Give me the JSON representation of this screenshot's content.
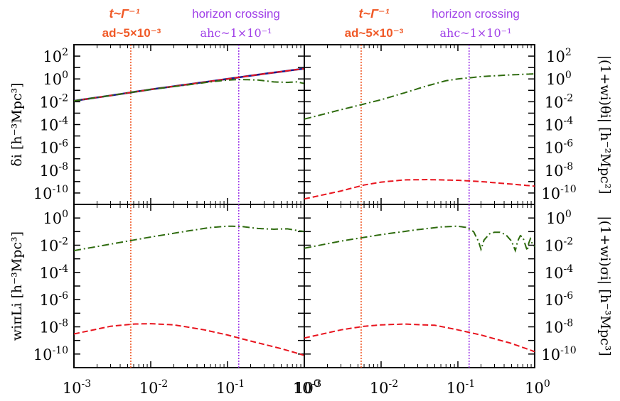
{
  "colors": {
    "decay": "#f05a28",
    "horizon": "#a040e8",
    "dark_blue": "#1a1a8c",
    "green": "#2e6b0e",
    "red": "#e8141e",
    "frame": "#000000"
  },
  "annotations": {
    "decay_title": "t~Γ⁻¹",
    "decay_sub": "ad~5×10⁻³",
    "horizon_title": "horizon crossing",
    "horizon_sub": "ahc~1×10⁻¹"
  },
  "chart_data": [
    {
      "type": "line",
      "panel": "top-left",
      "ylabel": "δi [h⁻³Mpc³]",
      "xscale": "log",
      "yscale": "log",
      "xlim": [
        0.001,
        1
      ],
      "ylim": [
        1e-11,
        1000
      ],
      "yticks": [
        "10^2",
        "10^0",
        "10^-2",
        "10^-4",
        "10^-6",
        "10^-8",
        "10^-10"
      ],
      "vlines": [
        0.0055,
        0.14
      ],
      "series": [
        {
          "name": "solid",
          "style": "solid",
          "color": "dark_blue",
          "x": [
            0.001,
            0.003,
            0.01,
            0.03,
            0.1,
            0.3,
            1
          ],
          "y": [
            0.012,
            0.035,
            0.12,
            0.33,
            1.0,
            2.8,
            8
          ]
        },
        {
          "name": "dashed",
          "style": "dashed",
          "color": "red",
          "x": [
            0.001,
            0.003,
            0.01,
            0.03,
            0.1,
            0.3,
            1
          ],
          "y": [
            0.012,
            0.035,
            0.12,
            0.33,
            1.0,
            2.8,
            8
          ]
        },
        {
          "name": "dash-dot",
          "style": "dashdot",
          "color": "green",
          "x": [
            0.001,
            0.003,
            0.01,
            0.03,
            0.06,
            0.1,
            0.15,
            0.25,
            0.4,
            0.6,
            0.8,
            1
          ],
          "y": [
            0.012,
            0.035,
            0.12,
            0.3,
            0.55,
            0.8,
            0.9,
            0.8,
            0.55,
            0.5,
            0.55,
            0.4
          ]
        }
      ]
    },
    {
      "type": "line",
      "panel": "top-right",
      "ylabel": "|(1+wi)θi| [h⁻²Mpc²]",
      "xscale": "log",
      "yscale": "log",
      "xlim": [
        0.001,
        1
      ],
      "ylim": [
        1e-11,
        1000
      ],
      "yticks": [
        "10^2",
        "10^0",
        "10^-2",
        "10^-4",
        "10^-6",
        "10^-8",
        "10^-10"
      ],
      "vlines": [
        0.0055,
        0.14
      ],
      "series": [
        {
          "name": "dash-dot",
          "style": "dashdot",
          "color": "green",
          "x": [
            0.001,
            0.003,
            0.01,
            0.02,
            0.04,
            0.07,
            0.1,
            0.2,
            0.5,
            1
          ],
          "y": [
            0.0003,
            0.002,
            0.015,
            0.06,
            0.25,
            0.7,
            1.0,
            1.6,
            2.3,
            2.8
          ]
        },
        {
          "name": "dashed",
          "style": "dashed",
          "color": "red",
          "x": [
            0.001,
            0.003,
            0.006,
            0.01,
            0.02,
            0.04,
            0.1,
            0.2,
            0.5,
            1
          ],
          "y": [
            3e-11,
            1.5e-10,
            5e-10,
            9e-10,
            1.4e-09,
            1.5e-09,
            1.3e-09,
            1e-09,
            6e-10,
            4e-10
          ]
        }
      ]
    },
    {
      "type": "line",
      "panel": "bottom-left",
      "ylabel": "wiπLi [h⁻³Mpc³]",
      "xlabel": "",
      "xscale": "log",
      "yscale": "log",
      "xlim": [
        0.001,
        1
      ],
      "ylim": [
        1e-11,
        10
      ],
      "yticks": [
        "10^0",
        "10^-2",
        "10^-4",
        "10^-6",
        "10^-8",
        "10^-10"
      ],
      "xticks": [
        "10^-3",
        "10^-2",
        "10^-1",
        "10^0"
      ],
      "vlines": [
        0.0055,
        0.14
      ],
      "series": [
        {
          "name": "dash-dot",
          "style": "dashdot",
          "color": "green",
          "x": [
            0.001,
            0.003,
            0.01,
            0.03,
            0.06,
            0.1,
            0.15,
            0.25,
            0.4,
            0.6,
            1
          ],
          "y": [
            0.004,
            0.012,
            0.04,
            0.11,
            0.2,
            0.25,
            0.24,
            0.17,
            0.15,
            0.16,
            0.1
          ]
        },
        {
          "name": "dashed",
          "style": "dashed",
          "color": "red",
          "x": [
            0.001,
            0.003,
            0.006,
            0.01,
            0.02,
            0.05,
            0.1,
            0.2,
            0.5,
            1
          ],
          "y": [
            3e-09,
            1.1e-08,
            1.6e-08,
            1.7e-08,
            1.4e-08,
            6e-09,
            2.5e-09,
            9e-10,
            2.5e-10,
            8e-11
          ]
        }
      ]
    },
    {
      "type": "line",
      "panel": "bottom-right",
      "ylabel": "|(1+wi)σi| [h⁻³Mpc³]",
      "xscale": "log",
      "yscale": "log",
      "xlim": [
        0.001,
        1
      ],
      "ylim": [
        1e-11,
        10
      ],
      "yticks": [
        "10^0",
        "10^-2",
        "10^-4",
        "10^-6",
        "10^-8",
        "10^-10"
      ],
      "xticks": [
        "10^-3",
        "10^-2",
        "10^-1",
        "10^0"
      ],
      "vlines": [
        0.0055,
        0.14
      ],
      "series": [
        {
          "name": "dash-dot",
          "style": "dashdot",
          "color": "green",
          "x": [
            0.001,
            0.003,
            0.01,
            0.03,
            0.06,
            0.1,
            0.13,
            0.16,
            0.185,
            0.2,
            0.22,
            0.26,
            0.3,
            0.35,
            0.42,
            0.5,
            0.56,
            0.6,
            0.65,
            0.7,
            0.75,
            0.8,
            0.84,
            0.88,
            0.92,
            1
          ],
          "y": [
            0.006,
            0.02,
            0.06,
            0.14,
            0.22,
            0.25,
            0.2,
            0.1,
            0.02,
            0.005,
            0.025,
            0.07,
            0.09,
            0.09,
            0.06,
            0.02,
            0.004,
            0.02,
            0.05,
            0.04,
            0.012,
            0.004,
            0.015,
            0.03,
            0.015,
            0.008
          ]
        },
        {
          "name": "dashed",
          "style": "dashed",
          "color": "red",
          "x": [
            0.001,
            0.003,
            0.006,
            0.01,
            0.02,
            0.05,
            0.1,
            0.2,
            0.5,
            1
          ],
          "y": [
            1.5e-09,
            6e-09,
            1.1e-08,
            1.4e-08,
            1.6e-08,
            1.3e-08,
            6e-09,
            2.5e-09,
            6e-10,
            1.5e-10
          ]
        }
      ]
    }
  ]
}
